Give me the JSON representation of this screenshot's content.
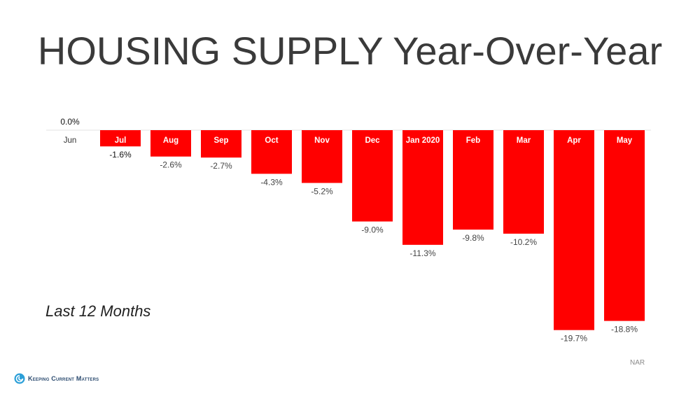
{
  "header": {
    "title": "HOUSING SUPPLY Year-Over-Year"
  },
  "note": {
    "period": "Last 12 Months",
    "source": "NAR"
  },
  "brand": {
    "name": "Keeping Current Matters",
    "logo_icon": "kcm-swirl-icon",
    "color": "#2b9fd8"
  },
  "chart_data": {
    "type": "bar",
    "categories": [
      "Jun",
      "Jul",
      "Aug",
      "Sep",
      "Oct",
      "Nov",
      "Dec",
      "Jan 2020",
      "Feb",
      "Mar",
      "Apr",
      "May"
    ],
    "values": [
      0.0,
      -1.6,
      -2.6,
      -2.7,
      -4.3,
      -5.2,
      -9.0,
      -11.3,
      -9.8,
      -10.2,
      -19.7,
      -18.8
    ],
    "labels": [
      "0.0%",
      "-1.6%",
      "-2.6%",
      "-2.7%",
      "-4.3%",
      "-5.2%",
      "-9.0%",
      "-11.3%",
      "-9.8%",
      "-10.2%",
      "-19.7%",
      "-18.8%"
    ],
    "ylim": [
      -20,
      0
    ],
    "bar_color": "#ff0000",
    "category_label_color": "#ffffff",
    "grid": false,
    "legend": "none"
  }
}
